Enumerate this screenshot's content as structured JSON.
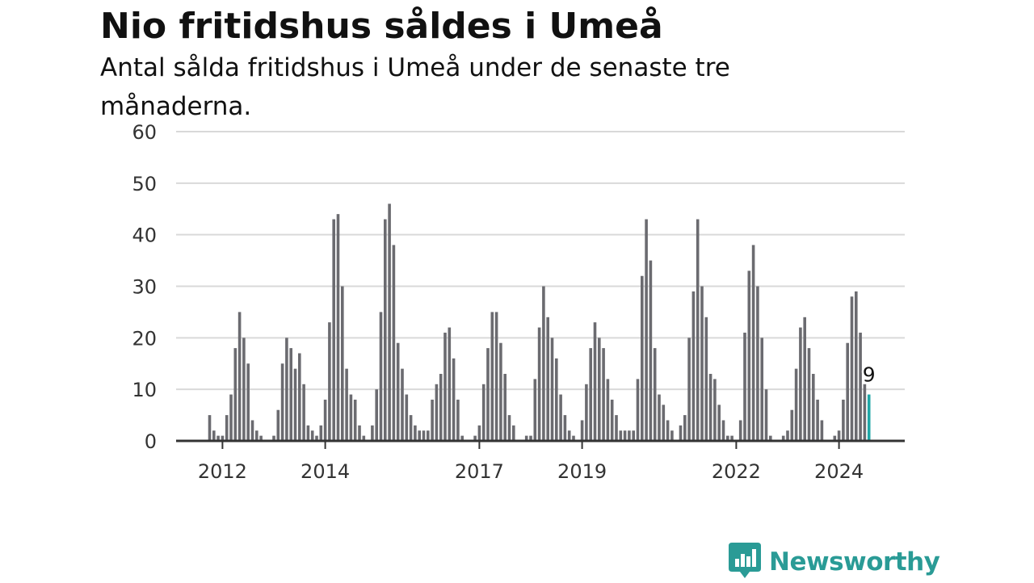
{
  "header": {
    "title": "Nio fritidshus såldes i Umeå",
    "subtitle": "Antal sålda fritidshus i Umeå under de senaste tre månaderna."
  },
  "brand": {
    "name": "Newsworthy",
    "logo_icon": "bar-chart-speech-bubble-icon",
    "color": "#2a9b96"
  },
  "colors": {
    "bar": "#6b6b70",
    "highlight": "#1fa7a7",
    "grid": "#d9d9d9",
    "baseline": "#333333"
  },
  "chart_data": {
    "type": "bar",
    "grid": true,
    "ylim": [
      0,
      60
    ],
    "y_ticks": [
      "0",
      "10",
      "20",
      "30",
      "40",
      "50",
      "60"
    ],
    "x_ticks": [
      "2012",
      "2014",
      "2017",
      "2019",
      "2022",
      "2024"
    ],
    "x_start": "2011-10",
    "highlight_label": "9",
    "values": [
      5,
      2,
      1,
      1,
      5,
      9,
      18,
      25,
      20,
      15,
      4,
      2,
      1,
      0,
      0,
      1,
      6,
      15,
      20,
      18,
      14,
      17,
      11,
      3,
      2,
      1,
      3,
      8,
      23,
      43,
      44,
      30,
      14,
      9,
      8,
      3,
      1,
      0,
      3,
      10,
      25,
      43,
      46,
      38,
      19,
      14,
      9,
      5,
      3,
      2,
      2,
      2,
      8,
      11,
      13,
      21,
      22,
      16,
      8,
      1,
      0,
      0,
      1,
      3,
      11,
      18,
      25,
      25,
      19,
      13,
      5,
      3,
      0,
      0,
      1,
      1,
      12,
      22,
      30,
      24,
      20,
      16,
      9,
      5,
      2,
      1,
      0,
      4,
      11,
      18,
      23,
      20,
      18,
      12,
      8,
      5,
      2,
      2,
      2,
      2,
      12,
      32,
      43,
      35,
      18,
      9,
      7,
      4,
      2,
      0,
      3,
      5,
      20,
      29,
      43,
      30,
      24,
      13,
      12,
      7,
      4,
      1,
      1,
      0,
      4,
      21,
      33,
      38,
      30,
      20,
      10,
      1,
      0,
      0,
      1,
      2,
      6,
      14,
      22,
      24,
      18,
      13,
      8,
      4,
      0,
      0,
      1,
      2,
      8,
      19,
      28,
      29,
      21,
      11,
      9
    ]
  }
}
